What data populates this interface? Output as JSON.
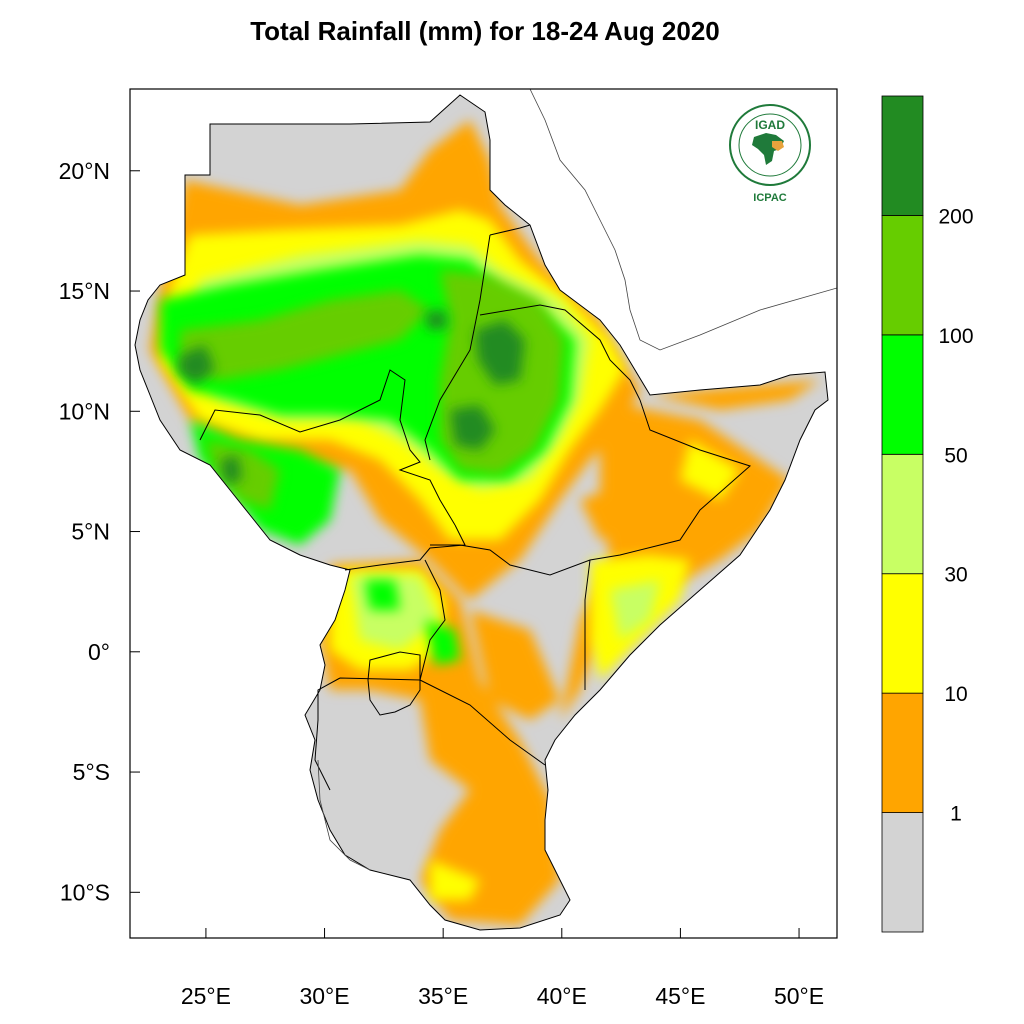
{
  "title": "Total Rainfall (mm) for 18-24 Aug 2020",
  "map": {
    "region": "Greater Horn of Africa",
    "lon_range": [
      21.8,
      51.6
    ],
    "lat_range": [
      -11.9,
      23.4
    ],
    "x_ticks": [
      {
        "value": 25,
        "label": "25°E"
      },
      {
        "value": 30,
        "label": "30°E"
      },
      {
        "value": 35,
        "label": "35°E"
      },
      {
        "value": 40,
        "label": "40°E"
      },
      {
        "value": 45,
        "label": "45°E"
      },
      {
        "value": 50,
        "label": "50°E"
      }
    ],
    "y_ticks": [
      {
        "value": 20,
        "label": "20°N"
      },
      {
        "value": 15,
        "label": "15°N"
      },
      {
        "value": 10,
        "label": "10°N"
      },
      {
        "value": 5,
        "label": "5°N"
      },
      {
        "value": 0,
        "label": "0°"
      },
      {
        "value": -5,
        "label": "5°S"
      },
      {
        "value": -10,
        "label": "10°S"
      }
    ],
    "ocean_color": "#ffffff",
    "border_color": "#000000"
  },
  "legend": {
    "bins": [
      {
        "range": "<1",
        "color": "#d3d3d3"
      },
      {
        "range": "1-10",
        "color": "#ffa500"
      },
      {
        "range": "10-30",
        "color": "#ffff00"
      },
      {
        "range": "30-50",
        "color": "#c8ff64"
      },
      {
        "range": "50-100",
        "color": "#00ff00"
      },
      {
        "range": "100-200",
        "color": "#66cd00"
      },
      {
        "range": ">200",
        "color": "#228b22"
      }
    ],
    "labels": [
      "1",
      "10",
      "30",
      "50",
      "100",
      "200"
    ]
  },
  "logo": {
    "name": "IGAD",
    "caption": "ICPAC",
    "ring_text": "INTERGOVERNMENTAL AUTHORITY ON DEVELOPMENT",
    "color": "#1f7a3a"
  }
}
